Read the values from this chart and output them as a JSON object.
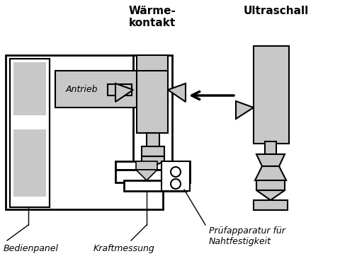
{
  "bg_color": "#ffffff",
  "line_color": "#000000",
  "gray_fill": "#c8c8c8",
  "labels": {
    "waermekontakt": "Wärme-\nkontakt",
    "ultraschall": "Ultraschall",
    "antrieb": "Antrieb",
    "bedienpanel": "Bedienpanel",
    "kraftmessung": "Kraftmessung",
    "pruefapparatur": "Prüfapparatur für\nNahtfestigkeit"
  },
  "figsize": [
    4.8,
    3.69
  ],
  "dpi": 100
}
